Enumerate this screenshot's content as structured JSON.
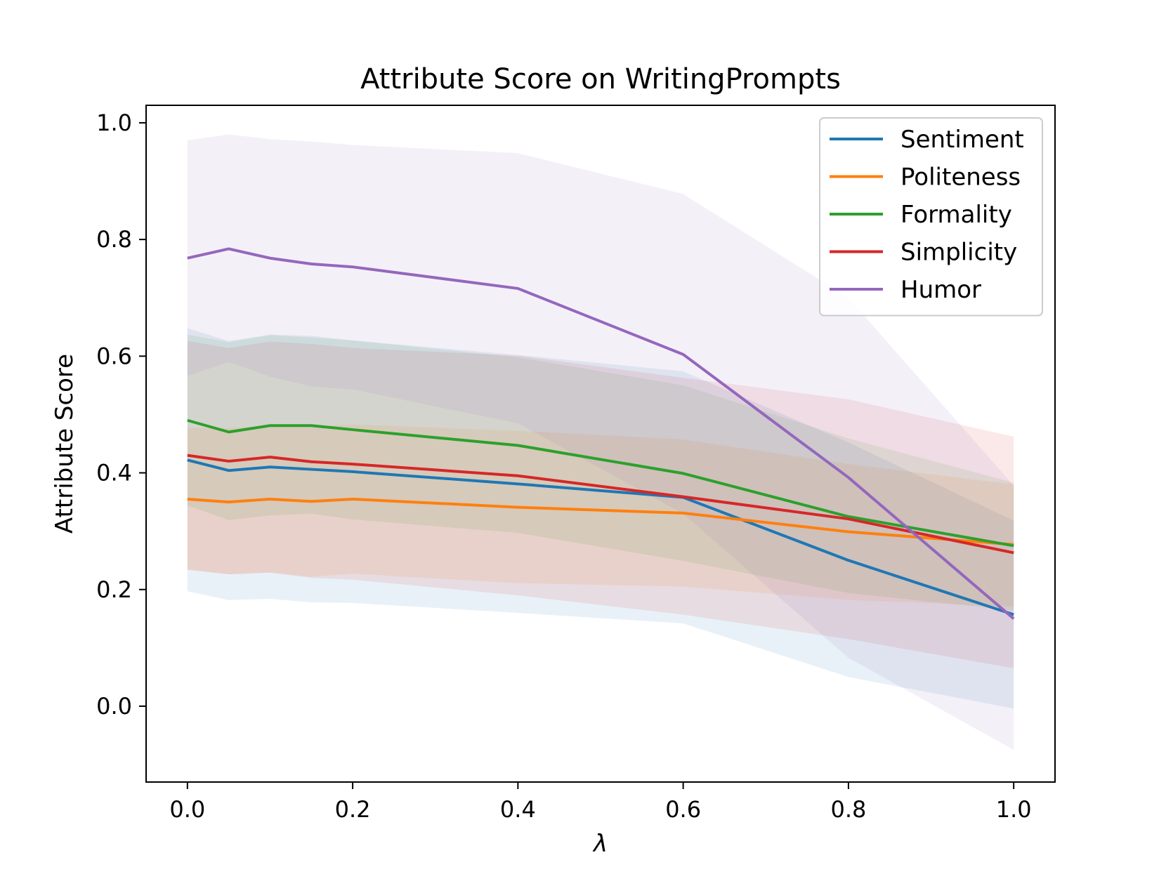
{
  "chart_data": {
    "type": "line",
    "title": "Attribute Score on WritingPrompts",
    "xlabel": "λ",
    "ylabel": "Attribute Score",
    "xlim": [
      -0.05,
      1.05
    ],
    "ylim": [
      -0.13,
      1.03
    ],
    "xticks": [
      0.0,
      0.2,
      0.4,
      0.6,
      0.8,
      1.0
    ],
    "xtick_labels": [
      "0.0",
      "0.2",
      "0.4",
      "0.6",
      "0.8",
      "1.0"
    ],
    "yticks": [
      0.0,
      0.2,
      0.4,
      0.6,
      0.8,
      1.0
    ],
    "ytick_labels": [
      "0.0",
      "0.2",
      "0.4",
      "0.6",
      "0.8",
      "1.0"
    ],
    "grid": false,
    "legend": "top-right",
    "x": [
      0.0,
      0.05,
      0.1,
      0.15,
      0.2,
      0.4,
      0.6,
      0.8,
      1.0
    ],
    "series": [
      {
        "name": "Sentiment",
        "color": "#1f77b4",
        "values": [
          0.422,
          0.404,
          0.41,
          0.406,
          0.402,
          0.381,
          0.358,
          0.25,
          0.157
        ],
        "upper": [
          0.648,
          0.626,
          0.637,
          0.635,
          0.627,
          0.602,
          0.574,
          0.452,
          0.318
        ],
        "lower": [
          0.197,
          0.182,
          0.184,
          0.178,
          0.177,
          0.16,
          0.142,
          0.05,
          -0.004
        ]
      },
      {
        "name": "Politeness",
        "color": "#ff7f0e",
        "values": [
          0.355,
          0.35,
          0.355,
          0.351,
          0.355,
          0.341,
          0.331,
          0.299,
          0.277
        ],
        "upper": [
          0.477,
          0.477,
          0.481,
          0.48,
          0.483,
          0.472,
          0.457,
          0.415,
          0.38
        ],
        "lower": [
          0.234,
          0.226,
          0.229,
          0.222,
          0.227,
          0.211,
          0.205,
          0.182,
          0.171
        ]
      },
      {
        "name": "Formality",
        "color": "#2ca02c",
        "values": [
          0.49,
          0.47,
          0.481,
          0.481,
          0.474,
          0.447,
          0.399,
          0.325,
          0.275
        ],
        "upper": [
          0.637,
          0.624,
          0.636,
          0.632,
          0.627,
          0.598,
          0.55,
          0.459,
          0.383
        ],
        "lower": [
          0.344,
          0.319,
          0.327,
          0.33,
          0.32,
          0.297,
          0.249,
          0.194,
          0.164
        ]
      },
      {
        "name": "Simplicity",
        "color": "#d62728",
        "values": [
          0.43,
          0.42,
          0.427,
          0.419,
          0.415,
          0.395,
          0.359,
          0.321,
          0.263
        ],
        "upper": [
          0.626,
          0.614,
          0.625,
          0.621,
          0.614,
          0.601,
          0.563,
          0.526,
          0.462
        ],
        "lower": [
          0.234,
          0.226,
          0.229,
          0.22,
          0.217,
          0.19,
          0.157,
          0.115,
          0.065
        ]
      },
      {
        "name": "Humor",
        "color": "#9467bd",
        "values": [
          0.768,
          0.784,
          0.768,
          0.758,
          0.753,
          0.716,
          0.603,
          0.392,
          0.15
        ],
        "upper": [
          0.97,
          0.98,
          0.972,
          0.968,
          0.962,
          0.948,
          0.878,
          0.7,
          0.378
        ],
        "lower": [
          0.566,
          0.59,
          0.565,
          0.548,
          0.543,
          0.485,
          0.33,
          0.083,
          -0.075
        ]
      }
    ]
  }
}
